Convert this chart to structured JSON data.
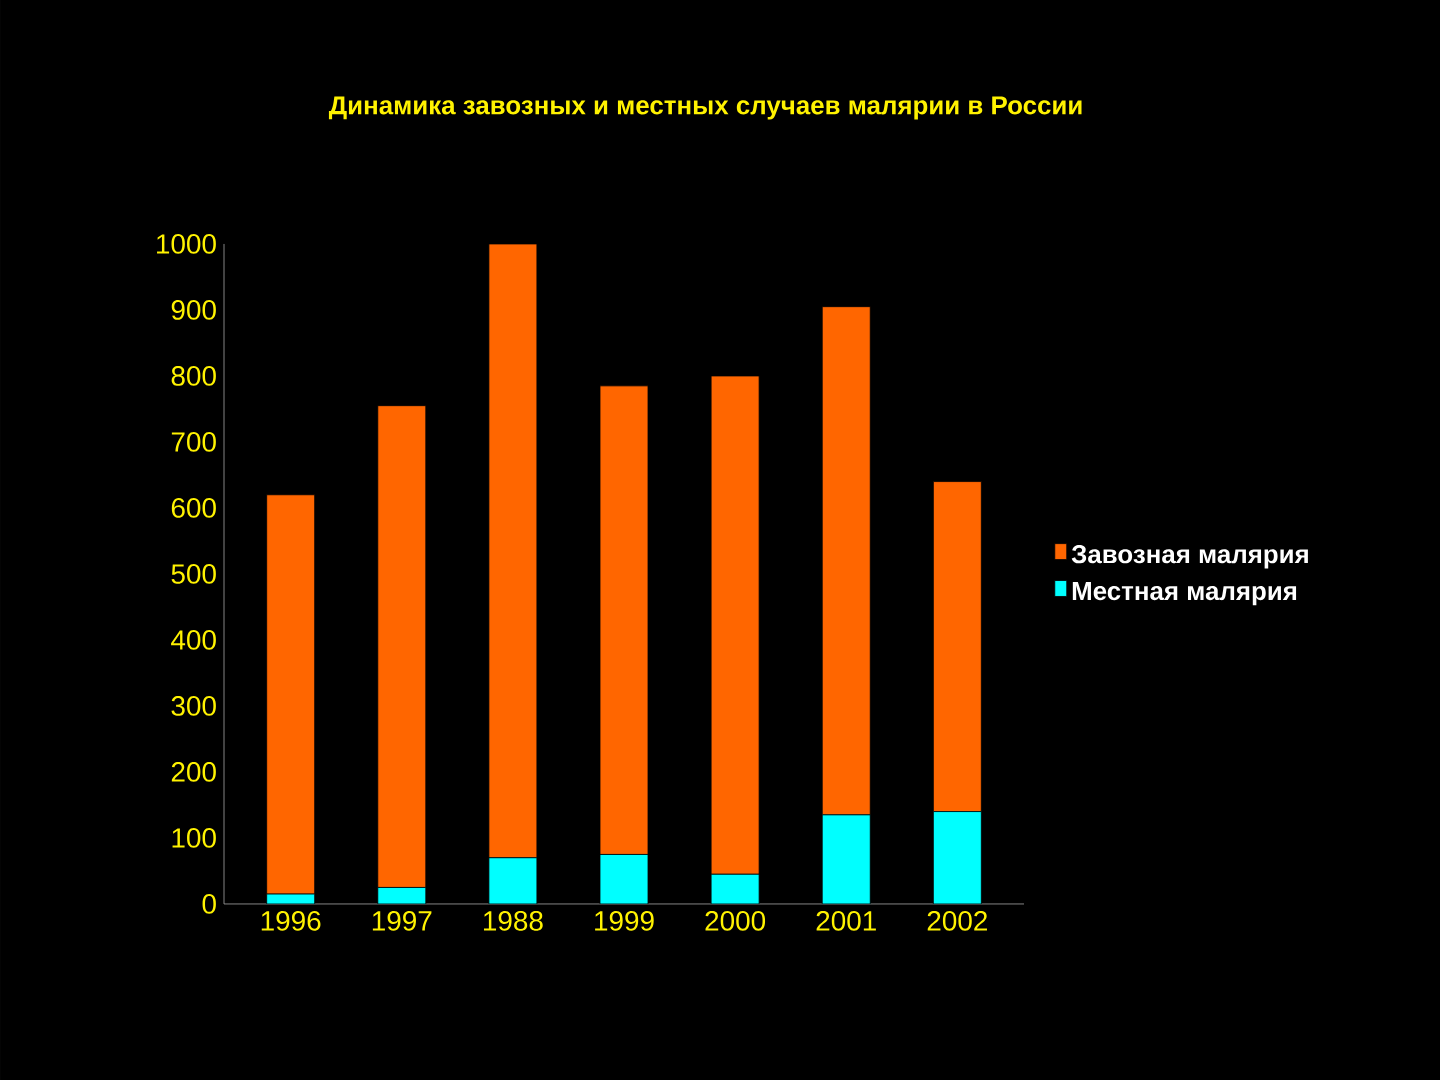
{
  "chart_data": {
    "type": "bar",
    "stacked": true,
    "title": "Динамика завозных и местных случаев малярии в России",
    "categories": [
      "1996",
      "1997",
      "1988",
      "1999",
      "2000",
      "2001",
      "2002"
    ],
    "series": [
      {
        "name": "Местная малярия",
        "color": "#00ffff",
        "values": [
          15,
          25,
          70,
          75,
          45,
          135,
          140
        ]
      },
      {
        "name": "Завозная малярия",
        "color": "#ff6600",
        "values": [
          605,
          730,
          930,
          710,
          755,
          770,
          500
        ]
      }
    ],
    "ylim": [
      0,
      1000
    ],
    "yticks": [
      0,
      100,
      200,
      300,
      400,
      500,
      600,
      700,
      800,
      900,
      1000
    ],
    "grid": false,
    "legend": "right"
  }
}
